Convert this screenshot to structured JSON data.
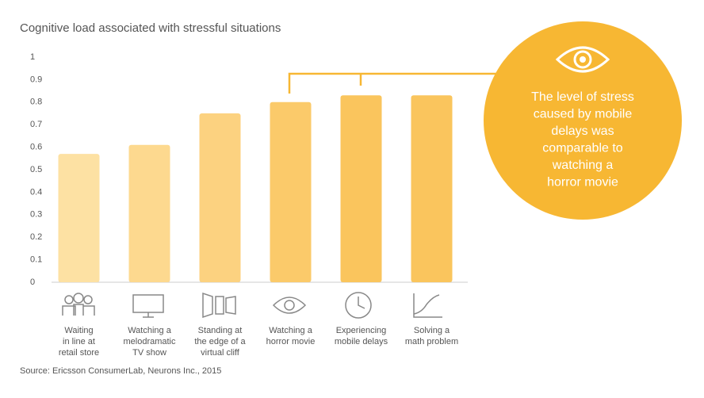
{
  "chart_data": {
    "type": "bar",
    "title": "Cognitive load associated with stressful situations",
    "categories": [
      [
        "Waiting",
        "in line at",
        "retail store"
      ],
      [
        "Watching a",
        "melodramatic",
        "TV show"
      ],
      [
        "Standing at",
        "the edge of a",
        "virtual cliff"
      ],
      [
        "Watching a",
        "horror movie"
      ],
      [
        "Experiencing",
        "mobile delays"
      ],
      [
        "Solving a",
        "math problem"
      ]
    ],
    "values": [
      0.57,
      0.61,
      0.75,
      0.8,
      0.83,
      0.83
    ],
    "colors": [
      "#fde1a3",
      "#fdd98f",
      "#fcd280",
      "#fbca6a",
      "#fac55d",
      "#fac55d"
    ],
    "ylim": [
      0,
      1
    ],
    "yticks": [
      0,
      0.1,
      0.2,
      0.3,
      0.4,
      0.5,
      0.6,
      0.7,
      0.8,
      0.9,
      1
    ],
    "annotation": [
      "The level of stress",
      "caused by mobile",
      "delays was",
      "comparable to",
      "watching a",
      "horror movie"
    ],
    "source": "Source: Ericsson ConsumerLab, Neurons Inc., 2015"
  }
}
